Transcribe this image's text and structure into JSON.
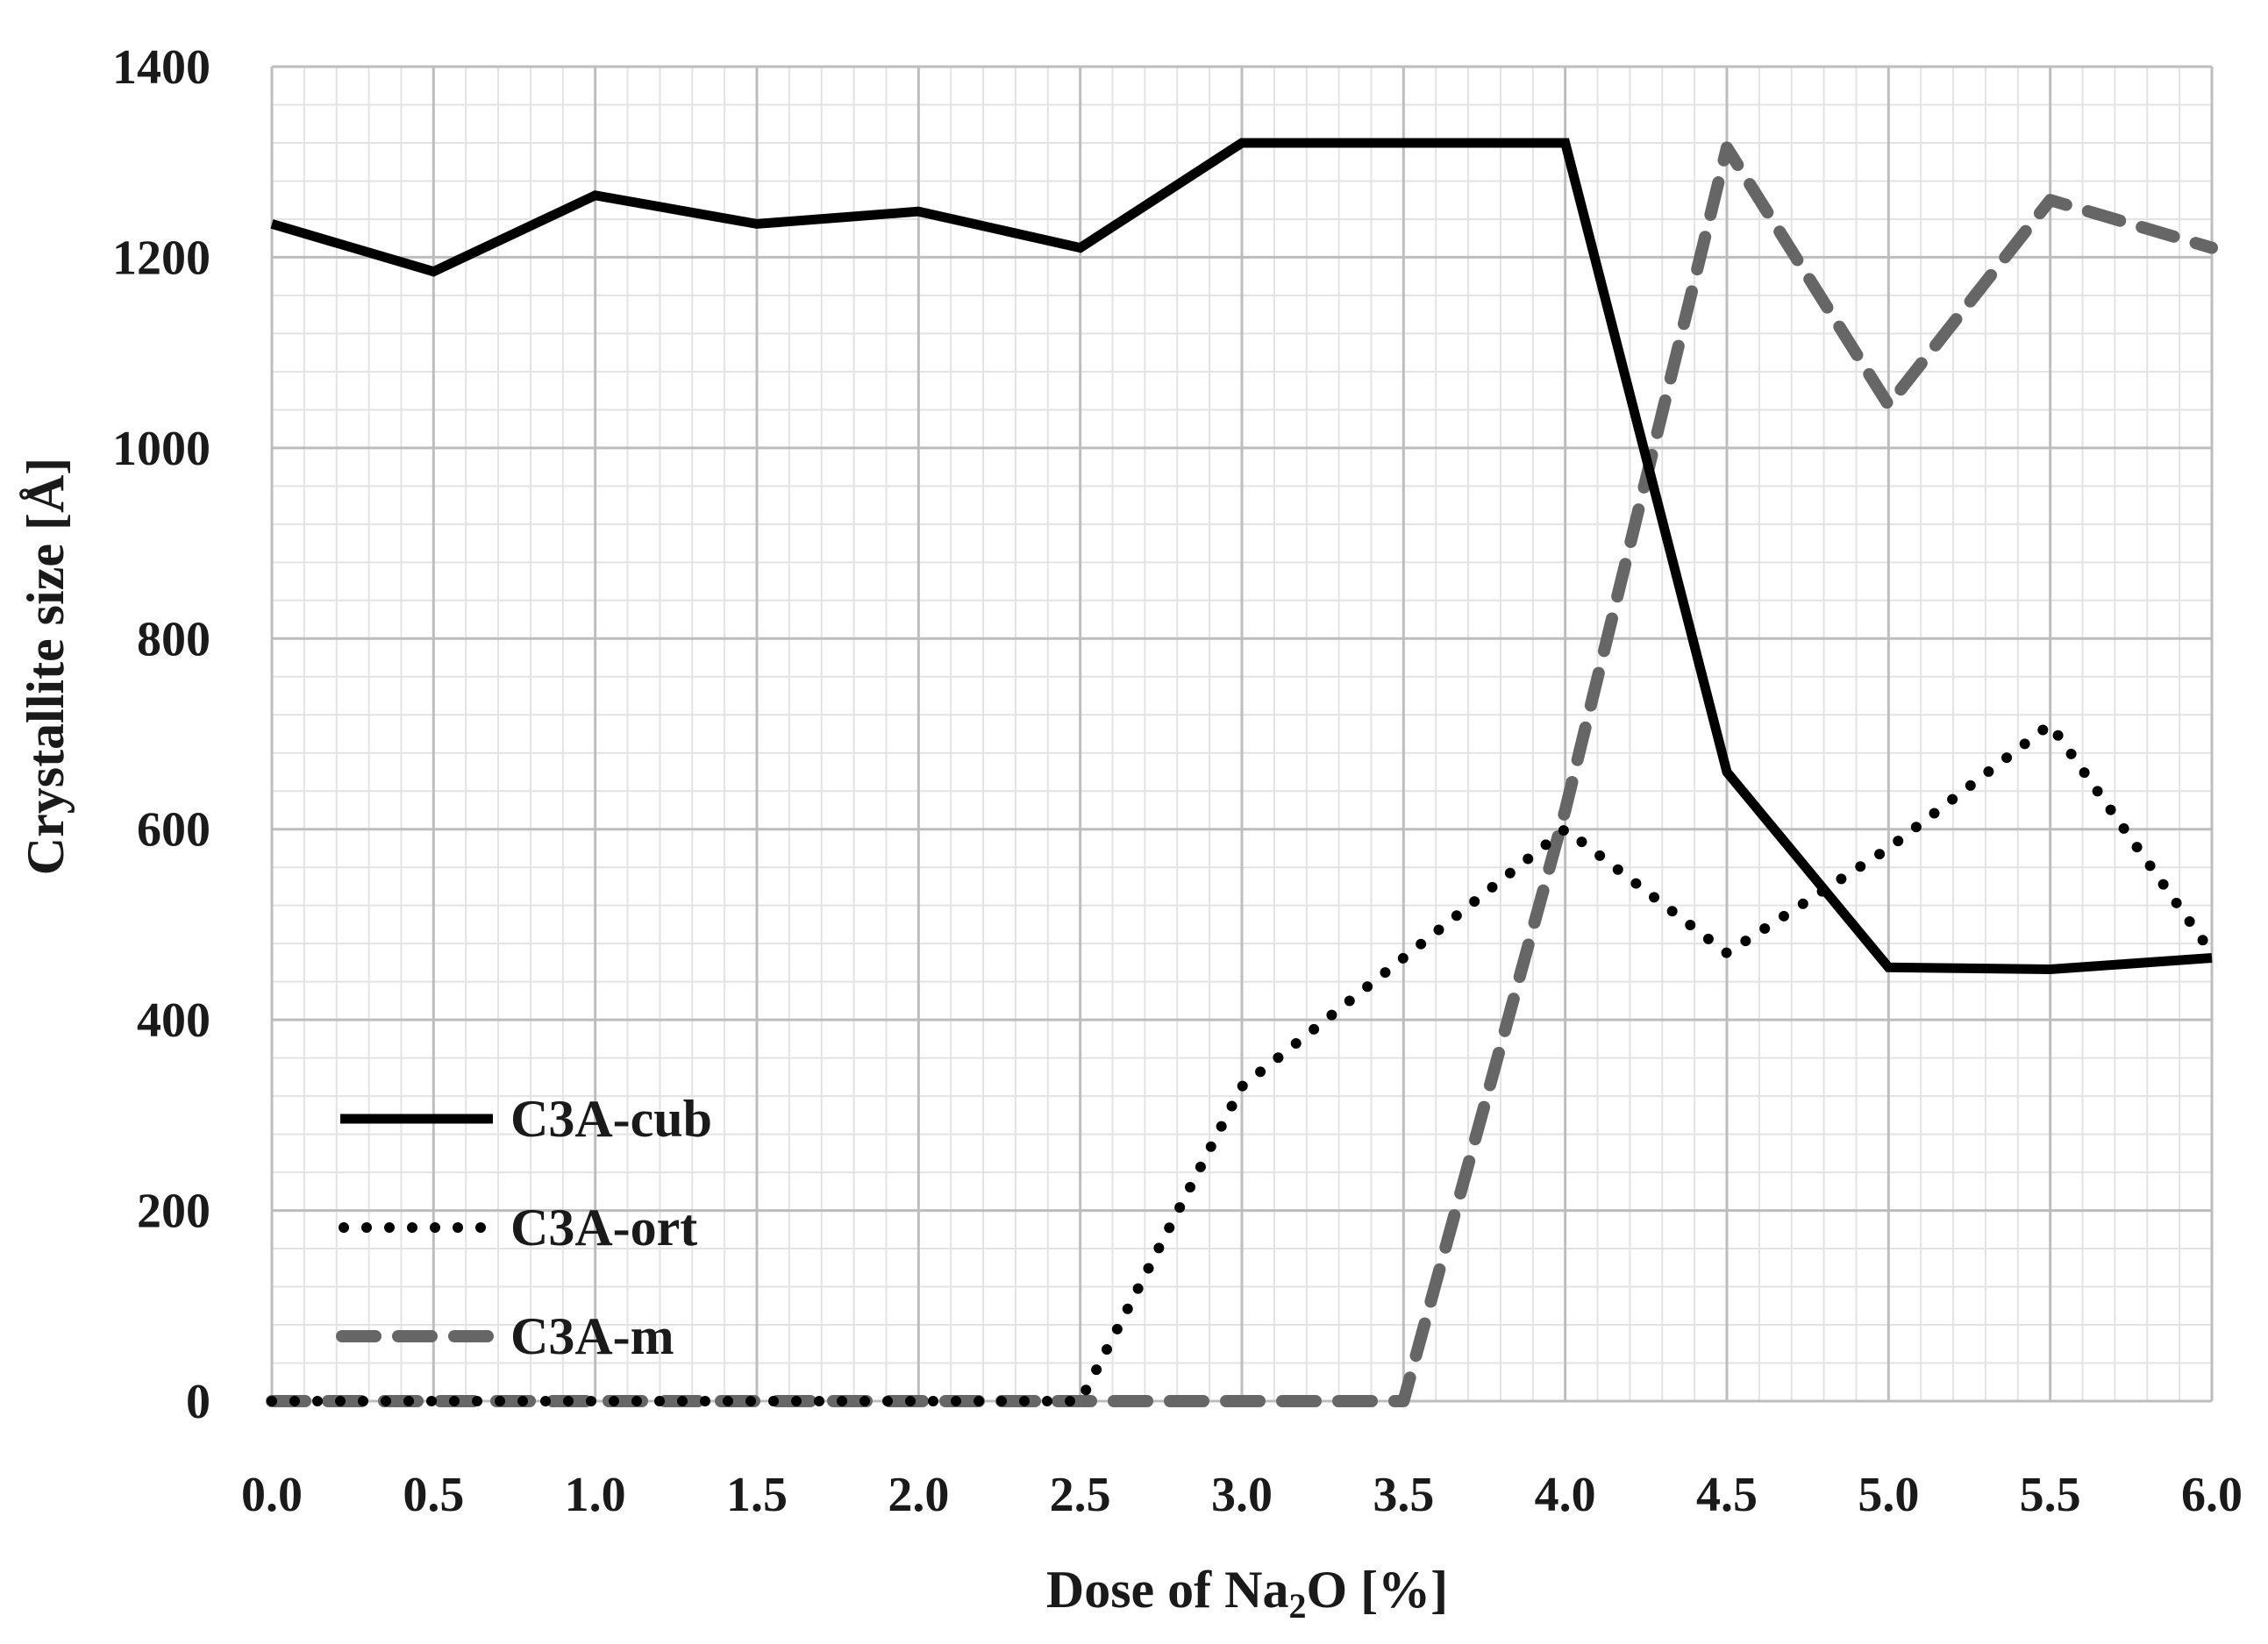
{
  "chart_data": {
    "type": "line",
    "xlabel": {
      "prefix": "Dose of Na",
      "subscript": "2",
      "suffix": "O [%]"
    },
    "ylabel": "Crystallite size [Å]",
    "x": [
      0.0,
      0.5,
      1.0,
      1.5,
      2.0,
      2.5,
      3.0,
      3.5,
      4.0,
      4.5,
      5.0,
      5.5,
      6.0
    ],
    "xticks": [
      "0.0",
      "0.5",
      "1.0",
      "1.5",
      "2.0",
      "2.5",
      "3.0",
      "3.5",
      "4.0",
      "4.5",
      "5.0",
      "5.5",
      "6.0"
    ],
    "xlim": [
      0,
      6
    ],
    "ylim": [
      0,
      1400
    ],
    "yticks": [
      "0",
      "200",
      "400",
      "600",
      "800",
      "1000",
      "1200",
      "1400"
    ],
    "grid": true,
    "legend_position": "lower-left",
    "series": [
      {
        "name": "C3A-cub",
        "style": "solid",
        "color": "#000000",
        "values": [
          1235,
          1185,
          1265,
          1235,
          1248,
          1210,
          1320,
          1320,
          1320,
          660,
          455,
          453,
          465
        ]
      },
      {
        "name": "C3A-ort",
        "style": "dotted",
        "color": "#000000",
        "values": [
          0,
          0,
          0,
          0,
          0,
          0,
          330,
          465,
          600,
          470,
          580,
          710,
          470
        ]
      },
      {
        "name": "C3A-m",
        "style": "dashed",
        "color": "#666666",
        "values": [
          0,
          0,
          0,
          0,
          0,
          0,
          0,
          0,
          620,
          1315,
          1045,
          1260,
          1210
        ]
      }
    ]
  }
}
